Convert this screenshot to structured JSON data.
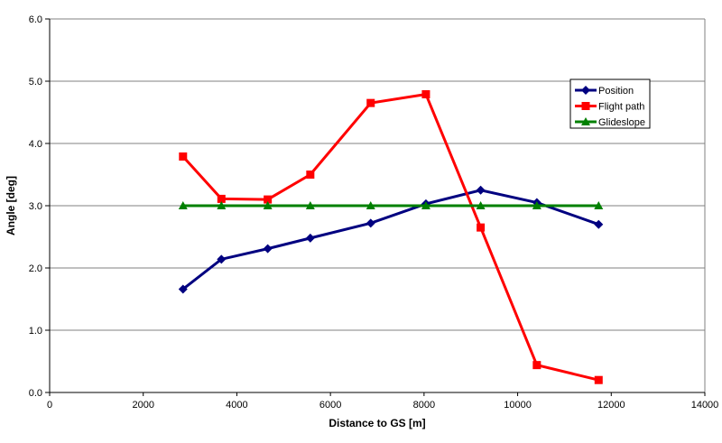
{
  "chart_data": {
    "type": "line",
    "title": "",
    "xlabel": "Distance to GS [m]",
    "ylabel": "Angle [deg]",
    "xlim": [
      0,
      14000
    ],
    "ylim": [
      0,
      6.0
    ],
    "xticks": [
      0,
      2000,
      4000,
      6000,
      8000,
      10000,
      12000,
      14000
    ],
    "yticks": [
      0.0,
      1.0,
      2.0,
      3.0,
      4.0,
      5.0,
      6.0
    ],
    "grid": "horizontal",
    "legend_position": "upper-right-inside",
    "x": [
      2850,
      3670,
      4660,
      5570,
      6860,
      8040,
      9210,
      10410,
      11730
    ],
    "series": [
      {
        "name": "Position",
        "color": "#000080",
        "marker": "diamond",
        "values": [
          1.66,
          2.14,
          2.31,
          2.48,
          2.72,
          3.03,
          3.25,
          3.05,
          2.7
        ]
      },
      {
        "name": "Flight path",
        "color": "#FF0000",
        "marker": "square",
        "values": [
          3.79,
          3.11,
          3.1,
          3.5,
          4.65,
          4.79,
          2.65,
          0.44,
          0.2
        ]
      },
      {
        "name": "Glideslope",
        "color": "#008000",
        "marker": "triangle",
        "values": [
          3.0,
          3.0,
          3.0,
          3.0,
          3.0,
          3.0,
          3.0,
          3.0,
          3.0
        ]
      }
    ],
    "colors": {
      "background": "#FFFFFF",
      "gridline": "#808080",
      "plot_border": "#808080",
      "axis": "#000000",
      "text": "#000000",
      "legend_border": "#000000",
      "legend_background": "#FFFFFF"
    }
  }
}
